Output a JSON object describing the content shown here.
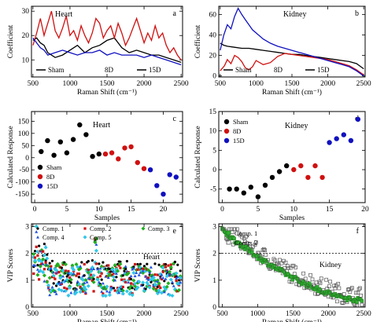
{
  "chart_data": [
    {
      "id": "a",
      "type": "line",
      "panel_label": "a",
      "title": "Heart",
      "xlabel": "Raman Shift (cm⁻¹)",
      "ylabel": "Coefficient",
      "xlim": [
        480,
        2520
      ],
      "ylim": [
        3,
        32
      ],
      "xticks": [
        500,
        1000,
        1500,
        2000,
        2500
      ],
      "yticks": [
        10,
        20,
        30
      ],
      "legend": {
        "placement": "bottom",
        "entries": [
          "Sham",
          "8D",
          "15D"
        ]
      },
      "series": [
        {
          "name": "Sham",
          "color": "#000000",
          "x": [
            500,
            550,
            600,
            650,
            700,
            800,
            900,
            1000,
            1100,
            1200,
            1300,
            1400,
            1500,
            1600,
            1700,
            1800,
            1900,
            2000,
            2100,
            2200,
            2300,
            2400,
            2500
          ],
          "y": [
            18,
            19,
            17,
            16,
            13,
            11,
            12,
            14,
            16,
            13,
            15,
            16,
            18,
            19,
            15,
            13,
            14,
            13,
            12,
            12,
            11,
            10,
            9
          ]
        },
        {
          "name": "8D",
          "color": "#d01010",
          "x": [
            500,
            550,
            600,
            650,
            700,
            750,
            800,
            850,
            900,
            950,
            1000,
            1050,
            1100,
            1150,
            1200,
            1250,
            1300,
            1350,
            1400,
            1450,
            1500,
            1550,
            1600,
            1650,
            1700,
            1750,
            1800,
            1850,
            1900,
            1950,
            2000,
            2050,
            2100,
            2150,
            2200,
            2250,
            2300,
            2350,
            2400,
            2450,
            2500
          ],
          "y": [
            16,
            21,
            27,
            20,
            25,
            30,
            22,
            19,
            23,
            28,
            20,
            22,
            18,
            24,
            20,
            17,
            21,
            27,
            25,
            19,
            22,
            24,
            19,
            25,
            21,
            16,
            19,
            23,
            27,
            22,
            17,
            21,
            18,
            24,
            19,
            21,
            16,
            13,
            15,
            12,
            10
          ]
        },
        {
          "name": "15D",
          "color": "#1010c0",
          "x": [
            500,
            550,
            600,
            650,
            700,
            800,
            900,
            1000,
            1100,
            1200,
            1300,
            1400,
            1500,
            1600,
            1700,
            1800,
            1900,
            2000,
            2100,
            2200,
            2300,
            2400,
            2500
          ],
          "y": [
            19,
            17,
            15,
            14,
            12,
            13,
            14,
            13,
            12,
            13,
            13,
            14,
            12,
            13,
            12,
            12,
            12,
            11,
            12,
            11,
            10,
            9,
            8
          ]
        }
      ]
    },
    {
      "id": "b",
      "type": "line",
      "panel_label": "b",
      "title": "Kidney",
      "xlabel": "Raman Shift (cm⁻¹)",
      "ylabel": "Coefficient",
      "xlim": [
        480,
        2520
      ],
      "ylim": [
        -1,
        68
      ],
      "xticks": [
        500,
        1000,
        1500,
        2000,
        2500
      ],
      "yticks": [
        0,
        20,
        40,
        60
      ],
      "legend": {
        "placement": "bottom",
        "entries": [
          "Sham",
          "8D",
          "15D"
        ]
      },
      "series": [
        {
          "name": "Sham",
          "color": "#000000",
          "x": [
            500,
            550,
            600,
            700,
            800,
            900,
            1000,
            1100,
            1200,
            1300,
            1400,
            1500,
            1600,
            1700,
            1800,
            1900,
            2000,
            2100,
            2200,
            2300,
            2400,
            2500
          ],
          "y": [
            32,
            30,
            29,
            28,
            27,
            27,
            26,
            25,
            24,
            23,
            22,
            21,
            21,
            20,
            19,
            18,
            17,
            16,
            15,
            14,
            12,
            7
          ]
        },
        {
          "name": "8D",
          "color": "#d01010",
          "x": [
            500,
            560,
            600,
            650,
            700,
            750,
            800,
            850,
            900,
            950,
            1000,
            1100,
            1200,
            1300,
            1400,
            1500,
            1600,
            1700,
            1800,
            1900,
            2000,
            2100,
            2200,
            2300,
            2400,
            2500
          ],
          "y": [
            5,
            10,
            16,
            12,
            20,
            18,
            14,
            8,
            6,
            9,
            15,
            11,
            13,
            19,
            22,
            21,
            20,
            19,
            18,
            17,
            16,
            14,
            12,
            10,
            6,
            1
          ]
        },
        {
          "name": "15D",
          "color": "#1010c0",
          "x": [
            500,
            550,
            600,
            650,
            700,
            750,
            800,
            850,
            900,
            950,
            1000,
            1100,
            1200,
            1300,
            1400,
            1500,
            1600,
            1700,
            1800,
            1900,
            2000,
            2100,
            2200,
            2300,
            2400,
            2500
          ],
          "y": [
            25,
            40,
            50,
            46,
            58,
            66,
            60,
            55,
            50,
            45,
            42,
            36,
            32,
            29,
            27,
            25,
            23,
            21,
            19,
            17,
            15,
            13,
            11,
            9,
            5,
            0
          ]
        }
      ]
    },
    {
      "id": "c",
      "type": "scatter",
      "panel_label": "c",
      "title": "Heart",
      "xlabel": "Samples",
      "ylabel": "Calculated Response",
      "xlim": [
        -0.5,
        23
      ],
      "ylim": [
        -185,
        190
      ],
      "xticks": [
        0,
        5,
        10,
        15,
        20
      ],
      "yticks": [
        -150,
        -100,
        -50,
        0,
        50,
        100,
        150
      ],
      "legend": {
        "placement": "bottom-left",
        "entries": [
          "Sham",
          "8D",
          "15D"
        ]
      },
      "series": [
        {
          "name": "Sham",
          "color": "#000000",
          "x": [
            1,
            2,
            3,
            4,
            5,
            6,
            7,
            8,
            9,
            10
          ],
          "y": [
            25,
            70,
            10,
            65,
            20,
            75,
            135,
            95,
            5,
            15
          ]
        },
        {
          "name": "8D",
          "color": "#d01010",
          "x": [
            11,
            12,
            13,
            14,
            15,
            16,
            17
          ],
          "y": [
            15,
            20,
            -5,
            40,
            45,
            -20,
            -45
          ]
        },
        {
          "name": "15D",
          "color": "#1010c0",
          "x": [
            18,
            19,
            20,
            21,
            22
          ],
          "y": [
            -50,
            -115,
            -150,
            -70,
            -80
          ]
        }
      ]
    },
    {
      "id": "d",
      "type": "scatter",
      "panel_label": "d",
      "title": "Kidney",
      "xlabel": "Samples",
      "ylabel": "Calculated Response",
      "xlim": [
        -0.5,
        20
      ],
      "ylim": [
        -8.5,
        15
      ],
      "xticks": [
        0,
        5,
        10,
        15,
        20
      ],
      "yticks": [
        -5,
        0,
        5,
        10,
        15
      ],
      "legend": {
        "placement": "top-left",
        "entries": [
          "Sham",
          "8D",
          "15D"
        ]
      },
      "series": [
        {
          "name": "Sham",
          "color": "#000000",
          "x": [
            1,
            2,
            3,
            4,
            5,
            6,
            7,
            8,
            9
          ],
          "y": [
            -5,
            -5,
            -6,
            -4.5,
            -7,
            -4,
            -2,
            -0.5,
            1
          ]
        },
        {
          "name": "8D",
          "color": "#d01010",
          "x": [
            10,
            11,
            12,
            13,
            14
          ],
          "y": [
            0,
            1,
            -2,
            1,
            -2
          ]
        },
        {
          "name": "15D",
          "color": "#1010c0",
          "x": [
            15,
            16,
            17,
            18,
            19
          ],
          "y": [
            7,
            8,
            9,
            7.5,
            13
          ]
        }
      ]
    },
    {
      "id": "e",
      "type": "scatter",
      "panel_label": "e",
      "annotation": "Heart",
      "xlabel": "Raman Shift (cm⁻¹)",
      "ylabel": "VIP Scores",
      "xlim": [
        480,
        2520
      ],
      "ylim": [
        0,
        3.1
      ],
      "xticks": [
        500,
        1000,
        1500,
        2000,
        2500
      ],
      "yticks": [
        0,
        1,
        2,
        3
      ],
      "threshold": 2,
      "legend": {
        "placement": "top",
        "entries": [
          "Comp. 1",
          "Comp. 2",
          "Comp. 3",
          "Comp. 4",
          "Comp. 5"
        ]
      },
      "series": [
        {
          "name": "Comp. 1",
          "color": "#000000",
          "marker": "circle",
          "base": 1.2
        },
        {
          "name": "Comp. 2",
          "color": "#d01010",
          "marker": "square",
          "base": 1.05
        },
        {
          "name": "Comp. 3",
          "color": "#20b020",
          "marker": "star",
          "base": 1.1
        },
        {
          "name": "Comp. 4",
          "color": "#2050e0",
          "marker": "triangle",
          "base": 1.0
        },
        {
          "name": "Comp. 5",
          "color": "#30c8e8",
          "marker": "star",
          "base": 0.95
        }
      ],
      "x_start": 510,
      "x_end": 2490,
      "x_step": 18
    },
    {
      "id": "f",
      "type": "scatter",
      "panel_label": "f",
      "annotation": "Kidney",
      "xlabel": "Raman Shift (cm⁻¹)",
      "ylabel": "VIP Scores",
      "xlim": [
        450,
        2520
      ],
      "ylim": [
        0,
        3.1
      ],
      "xticks": [
        500,
        1000,
        1500,
        2000,
        2500
      ],
      "yticks": [
        0,
        1,
        2,
        3
      ],
      "threshold": 2,
      "legend": {
        "placement": "top-left",
        "entries": [
          "Comp. 1",
          "Comp. 2"
        ]
      },
      "series": [
        {
          "name": "Comp. 1",
          "color": "#30b030",
          "marker": "filled-square"
        },
        {
          "name": "Comp. 2",
          "color": "#555555",
          "marker": "open-square"
        }
      ],
      "x_start": 500,
      "x_end": 2480,
      "x_step": 14
    }
  ]
}
